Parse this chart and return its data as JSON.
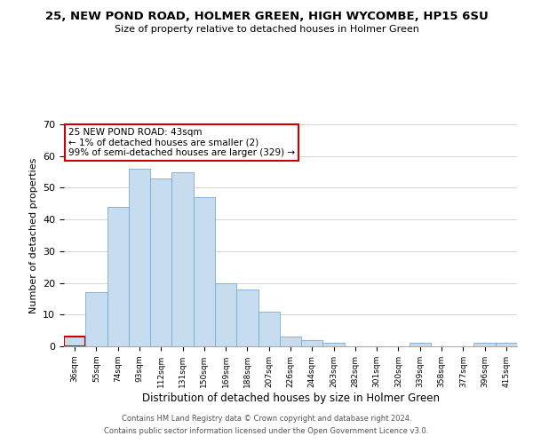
{
  "title": "25, NEW POND ROAD, HOLMER GREEN, HIGH WYCOMBE, HP15 6SU",
  "subtitle": "Size of property relative to detached houses in Holmer Green",
  "xlabel": "Distribution of detached houses by size in Holmer Green",
  "ylabel": "Number of detached properties",
  "bar_color": "#c8dcf0",
  "bar_edge_color": "#7aaad0",
  "highlight_color": "#cc0000",
  "categories": [
    "36sqm",
    "55sqm",
    "74sqm",
    "93sqm",
    "112sqm",
    "131sqm",
    "150sqm",
    "169sqm",
    "188sqm",
    "207sqm",
    "226sqm",
    "244sqm",
    "263sqm",
    "282sqm",
    "301sqm",
    "320sqm",
    "339sqm",
    "358sqm",
    "377sqm",
    "396sqm",
    "415sqm"
  ],
  "values": [
    3,
    17,
    44,
    56,
    53,
    55,
    47,
    20,
    18,
    11,
    3,
    2,
    1,
    0,
    0,
    0,
    1,
    0,
    0,
    1,
    1
  ],
  "ylim": [
    0,
    70
  ],
  "yticks": [
    0,
    10,
    20,
    30,
    40,
    50,
    60,
    70
  ],
  "annotation_title": "25 NEW POND ROAD: 43sqm",
  "annotation_line1": "← 1% of detached houses are smaller (2)",
  "annotation_line2": "99% of semi-detached houses are larger (329) →",
  "footnote1": "Contains HM Land Registry data © Crown copyright and database right 2024.",
  "footnote2": "Contains public sector information licensed under the Open Government Licence v3.0.",
  "background_color": "#ffffff"
}
